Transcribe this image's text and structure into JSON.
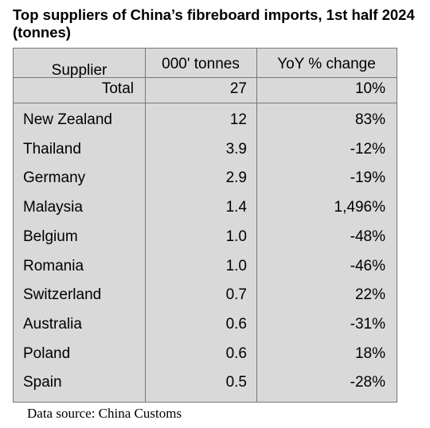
{
  "title": "Top suppliers of China’s fibreboard imports, 1st half 2024 (tonnes)",
  "source": "Data source: China Customs",
  "colors": {
    "table_bg": "#d9d9d9",
    "border": "#777777"
  },
  "chart_data": {
    "type": "table",
    "title": "Top suppliers of China’s fibreboard imports, 1st half 2024 (tonnes)",
    "columns": [
      "Supplier",
      "000' tonnes",
      "YoY % change"
    ],
    "total": {
      "supplier": "Total",
      "tonnes": "27",
      "yoy": "10%"
    },
    "rows": [
      {
        "supplier": "New Zealand",
        "tonnes": "12",
        "yoy": "83%"
      },
      {
        "supplier": "Thailand",
        "tonnes": "3.9",
        "yoy": "-12%"
      },
      {
        "supplier": "Germany",
        "tonnes": "2.9",
        "yoy": "-19%"
      },
      {
        "supplier": "Malaysia",
        "tonnes": "1.4",
        "yoy": "1,496%"
      },
      {
        "supplier": "Belgium",
        "tonnes": "1.0",
        "yoy": "-48%"
      },
      {
        "supplier": "Romania",
        "tonnes": "1.0",
        "yoy": "-46%"
      },
      {
        "supplier": "Switzerland",
        "tonnes": "0.7",
        "yoy": "22%"
      },
      {
        "supplier": "Australia",
        "tonnes": "0.6",
        "yoy": "-31%"
      },
      {
        "supplier": "Poland",
        "tonnes": "0.6",
        "yoy": "18%"
      },
      {
        "supplier": "Spain",
        "tonnes": "0.5",
        "yoy": "-28%"
      }
    ]
  }
}
